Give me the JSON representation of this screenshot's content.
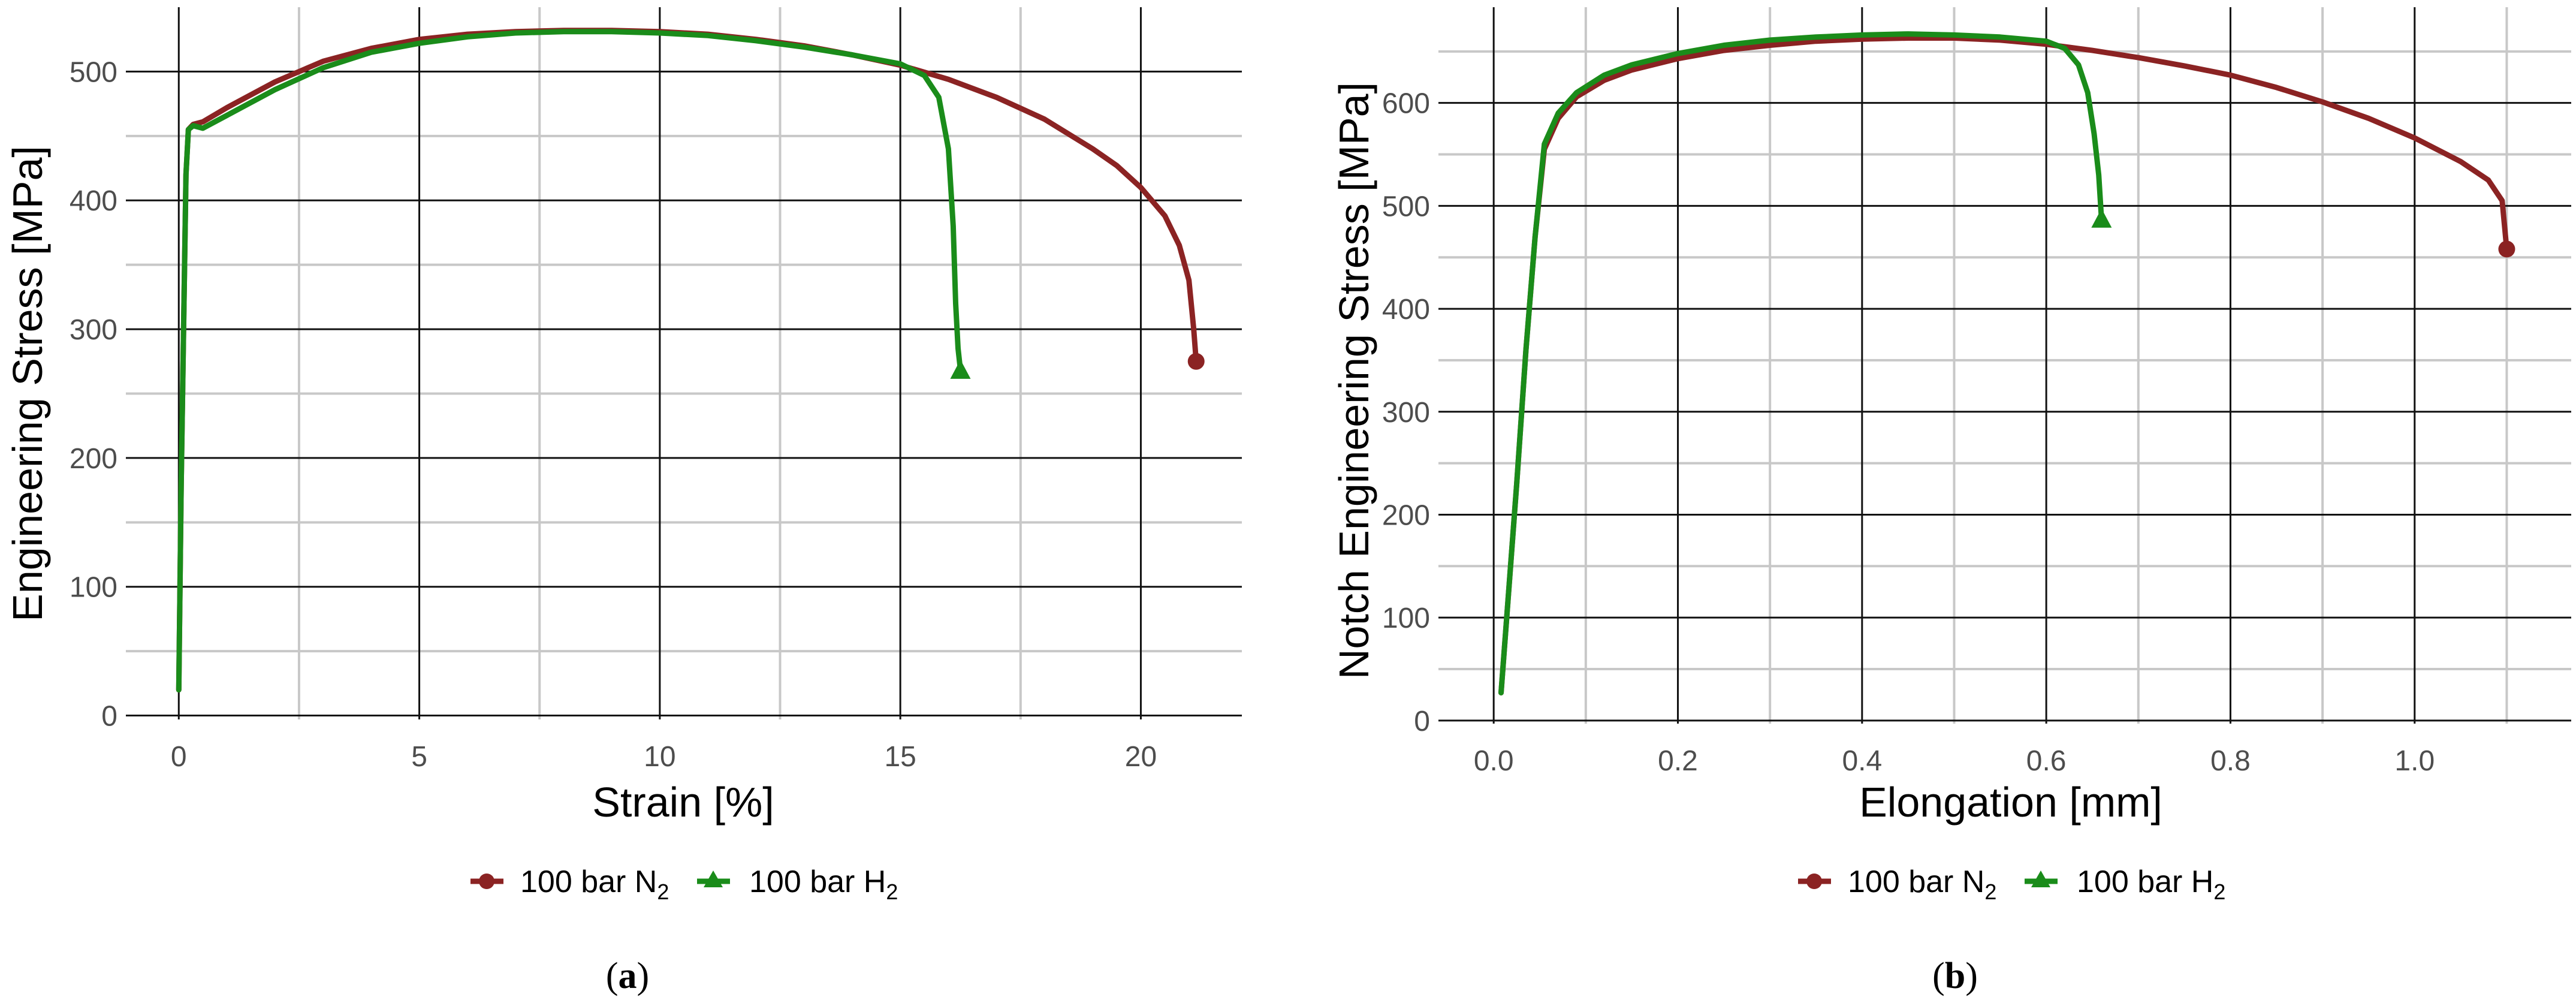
{
  "colors": {
    "n2": "#8b2323",
    "h2": "#1a8c1a"
  },
  "legend": {
    "n2": {
      "prefix": "100 bar N",
      "sub": "2"
    },
    "h2": {
      "prefix": "100 bar H",
      "sub": "2"
    }
  },
  "chart_data": [
    {
      "type": "line",
      "panel_label": {
        "open": "(",
        "letter": "a",
        "close": ")"
      },
      "xlabel": "Strain [%]",
      "ylabel": "Engineering Stress [MPa]",
      "xlim": [
        -1.1,
        22.1
      ],
      "ylim": [
        -3,
        550
      ],
      "xticks": [
        0,
        5,
        10,
        15,
        20
      ],
      "yticks": [
        0,
        100,
        200,
        300,
        400,
        500
      ],
      "xminor": [
        2.5,
        7.5,
        12.5,
        17.5
      ],
      "yminor": [
        50,
        150,
        250,
        350,
        450
      ],
      "grid": true,
      "legend_position": "bottom",
      "series": [
        {
          "key": "n2",
          "marker": "circle",
          "x": [
            0,
            0.05,
            0.1,
            0.15,
            0.2,
            0.3,
            0.5,
            1,
            2,
            3,
            4,
            5,
            6,
            7,
            8,
            9,
            10,
            11,
            12,
            13,
            14,
            15,
            16,
            17,
            18,
            19,
            19.5,
            20,
            20.5,
            20.8,
            21,
            21.1,
            21.15
          ],
          "y": [
            20,
            180,
            300,
            420,
            455,
            459,
            461,
            472,
            492,
            508,
            518,
            525,
            529,
            531,
            532,
            532,
            531,
            529,
            525,
            520,
            513,
            505,
            494,
            480,
            463,
            440,
            427,
            410,
            388,
            365,
            338,
            300,
            275
          ]
        },
        {
          "key": "h2",
          "marker": "triangle",
          "x": [
            0,
            0.05,
            0.1,
            0.15,
            0.2,
            0.3,
            0.5,
            1,
            2,
            3,
            4,
            5,
            6,
            7,
            8,
            9,
            10,
            11,
            12,
            13,
            14,
            15,
            15.5,
            15.8,
            16,
            16.1,
            16.15,
            16.2,
            16.25
          ],
          "y": [
            20,
            180,
            300,
            420,
            455,
            458,
            456,
            466,
            486,
            503,
            515,
            522,
            527,
            530,
            531,
            531,
            530,
            528,
            524,
            519,
            513,
            506,
            497,
            480,
            440,
            380,
            320,
            285,
            268
          ]
        }
      ]
    },
    {
      "type": "line",
      "panel_label": {
        "open": "(",
        "letter": "b",
        "close": ")"
      },
      "xlabel": "Elongation [mm]",
      "ylabel": "Notch Engineering Stress [MPa]",
      "xlim": [
        -0.06,
        1.17
      ],
      "ylim": [
        -3,
        693
      ],
      "xticks": [
        0.0,
        0.2,
        0.4,
        0.6,
        0.8,
        1.0
      ],
      "yticks": [
        0,
        100,
        200,
        300,
        400,
        500,
        600
      ],
      "xminor": [
        0.1,
        0.3,
        0.5,
        0.7,
        0.9,
        1.1
      ],
      "yminor": [
        50,
        150,
        250,
        350,
        450,
        550,
        650
      ],
      "grid": true,
      "legend_position": "bottom",
      "series": [
        {
          "key": "n2",
          "marker": "circle",
          "x": [
            0.008,
            0.015,
            0.025,
            0.035,
            0.045,
            0.055,
            0.07,
            0.09,
            0.12,
            0.15,
            0.2,
            0.25,
            0.3,
            0.35,
            0.4,
            0.45,
            0.5,
            0.55,
            0.6,
            0.65,
            0.7,
            0.75,
            0.8,
            0.85,
            0.9,
            0.95,
            1.0,
            1.05,
            1.08,
            1.095,
            1.1
          ],
          "y": [
            27,
            110,
            230,
            360,
            470,
            555,
            585,
            606,
            622,
            632,
            643,
            651,
            656,
            660,
            662,
            663,
            663,
            661,
            657,
            651,
            644,
            636,
            627,
            615,
            601,
            585,
            566,
            543,
            525,
            505,
            458
          ]
        },
        {
          "key": "h2",
          "marker": "triangle",
          "x": [
            0.008,
            0.015,
            0.025,
            0.035,
            0.045,
            0.055,
            0.07,
            0.09,
            0.12,
            0.15,
            0.2,
            0.25,
            0.3,
            0.35,
            0.4,
            0.45,
            0.5,
            0.55,
            0.6,
            0.62,
            0.635,
            0.645,
            0.652,
            0.657,
            0.66
          ],
          "y": [
            27,
            110,
            230,
            360,
            470,
            560,
            590,
            610,
            627,
            637,
            648,
            656,
            661,
            664,
            666,
            667,
            666,
            664,
            660,
            653,
            637,
            610,
            570,
            530,
            487
          ]
        }
      ]
    }
  ]
}
